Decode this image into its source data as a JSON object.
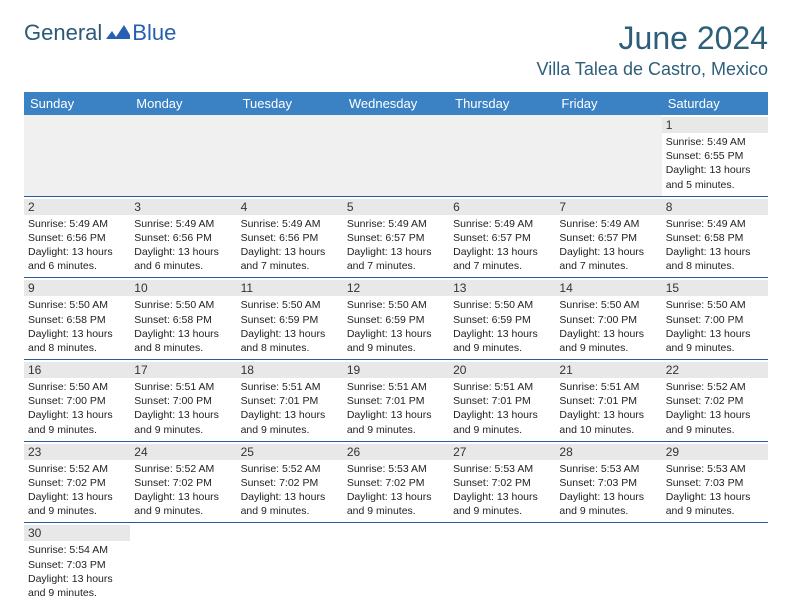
{
  "logo": {
    "general": "General",
    "blue": "Blue"
  },
  "title": "June 2024",
  "location": "Villa Talea de Castro, Mexico",
  "colors": {
    "header_bg": "#3b82c4",
    "header_text": "#ffffff",
    "title_color": "#2e5f7a",
    "border": "#2b5a9a",
    "daynum_bg": "#e8e8e8",
    "empty_bg": "#f0f0f0"
  },
  "day_names": [
    "Sunday",
    "Monday",
    "Tuesday",
    "Wednesday",
    "Thursday",
    "Friday",
    "Saturday"
  ],
  "weeks": [
    [
      null,
      null,
      null,
      null,
      null,
      null,
      {
        "n": "1",
        "sr": "Sunrise: 5:49 AM",
        "ss": "Sunset: 6:55 PM",
        "dl": "Daylight: 13 hours and 5 minutes."
      }
    ],
    [
      {
        "n": "2",
        "sr": "Sunrise: 5:49 AM",
        "ss": "Sunset: 6:56 PM",
        "dl": "Daylight: 13 hours and 6 minutes."
      },
      {
        "n": "3",
        "sr": "Sunrise: 5:49 AM",
        "ss": "Sunset: 6:56 PM",
        "dl": "Daylight: 13 hours and 6 minutes."
      },
      {
        "n": "4",
        "sr": "Sunrise: 5:49 AM",
        "ss": "Sunset: 6:56 PM",
        "dl": "Daylight: 13 hours and 7 minutes."
      },
      {
        "n": "5",
        "sr": "Sunrise: 5:49 AM",
        "ss": "Sunset: 6:57 PM",
        "dl": "Daylight: 13 hours and 7 minutes."
      },
      {
        "n": "6",
        "sr": "Sunrise: 5:49 AM",
        "ss": "Sunset: 6:57 PM",
        "dl": "Daylight: 13 hours and 7 minutes."
      },
      {
        "n": "7",
        "sr": "Sunrise: 5:49 AM",
        "ss": "Sunset: 6:57 PM",
        "dl": "Daylight: 13 hours and 7 minutes."
      },
      {
        "n": "8",
        "sr": "Sunrise: 5:49 AM",
        "ss": "Sunset: 6:58 PM",
        "dl": "Daylight: 13 hours and 8 minutes."
      }
    ],
    [
      {
        "n": "9",
        "sr": "Sunrise: 5:50 AM",
        "ss": "Sunset: 6:58 PM",
        "dl": "Daylight: 13 hours and 8 minutes."
      },
      {
        "n": "10",
        "sr": "Sunrise: 5:50 AM",
        "ss": "Sunset: 6:58 PM",
        "dl": "Daylight: 13 hours and 8 minutes."
      },
      {
        "n": "11",
        "sr": "Sunrise: 5:50 AM",
        "ss": "Sunset: 6:59 PM",
        "dl": "Daylight: 13 hours and 8 minutes."
      },
      {
        "n": "12",
        "sr": "Sunrise: 5:50 AM",
        "ss": "Sunset: 6:59 PM",
        "dl": "Daylight: 13 hours and 9 minutes."
      },
      {
        "n": "13",
        "sr": "Sunrise: 5:50 AM",
        "ss": "Sunset: 6:59 PM",
        "dl": "Daylight: 13 hours and 9 minutes."
      },
      {
        "n": "14",
        "sr": "Sunrise: 5:50 AM",
        "ss": "Sunset: 7:00 PM",
        "dl": "Daylight: 13 hours and 9 minutes."
      },
      {
        "n": "15",
        "sr": "Sunrise: 5:50 AM",
        "ss": "Sunset: 7:00 PM",
        "dl": "Daylight: 13 hours and 9 minutes."
      }
    ],
    [
      {
        "n": "16",
        "sr": "Sunrise: 5:50 AM",
        "ss": "Sunset: 7:00 PM",
        "dl": "Daylight: 13 hours and 9 minutes."
      },
      {
        "n": "17",
        "sr": "Sunrise: 5:51 AM",
        "ss": "Sunset: 7:00 PM",
        "dl": "Daylight: 13 hours and 9 minutes."
      },
      {
        "n": "18",
        "sr": "Sunrise: 5:51 AM",
        "ss": "Sunset: 7:01 PM",
        "dl": "Daylight: 13 hours and 9 minutes."
      },
      {
        "n": "19",
        "sr": "Sunrise: 5:51 AM",
        "ss": "Sunset: 7:01 PM",
        "dl": "Daylight: 13 hours and 9 minutes."
      },
      {
        "n": "20",
        "sr": "Sunrise: 5:51 AM",
        "ss": "Sunset: 7:01 PM",
        "dl": "Daylight: 13 hours and 9 minutes."
      },
      {
        "n": "21",
        "sr": "Sunrise: 5:51 AM",
        "ss": "Sunset: 7:01 PM",
        "dl": "Daylight: 13 hours and 10 minutes."
      },
      {
        "n": "22",
        "sr": "Sunrise: 5:52 AM",
        "ss": "Sunset: 7:02 PM",
        "dl": "Daylight: 13 hours and 9 minutes."
      }
    ],
    [
      {
        "n": "23",
        "sr": "Sunrise: 5:52 AM",
        "ss": "Sunset: 7:02 PM",
        "dl": "Daylight: 13 hours and 9 minutes."
      },
      {
        "n": "24",
        "sr": "Sunrise: 5:52 AM",
        "ss": "Sunset: 7:02 PM",
        "dl": "Daylight: 13 hours and 9 minutes."
      },
      {
        "n": "25",
        "sr": "Sunrise: 5:52 AM",
        "ss": "Sunset: 7:02 PM",
        "dl": "Daylight: 13 hours and 9 minutes."
      },
      {
        "n": "26",
        "sr": "Sunrise: 5:53 AM",
        "ss": "Sunset: 7:02 PM",
        "dl": "Daylight: 13 hours and 9 minutes."
      },
      {
        "n": "27",
        "sr": "Sunrise: 5:53 AM",
        "ss": "Sunset: 7:02 PM",
        "dl": "Daylight: 13 hours and 9 minutes."
      },
      {
        "n": "28",
        "sr": "Sunrise: 5:53 AM",
        "ss": "Sunset: 7:03 PM",
        "dl": "Daylight: 13 hours and 9 minutes."
      },
      {
        "n": "29",
        "sr": "Sunrise: 5:53 AM",
        "ss": "Sunset: 7:03 PM",
        "dl": "Daylight: 13 hours and 9 minutes."
      }
    ],
    [
      {
        "n": "30",
        "sr": "Sunrise: 5:54 AM",
        "ss": "Sunset: 7:03 PM",
        "dl": "Daylight: 13 hours and 9 minutes."
      },
      null,
      null,
      null,
      null,
      null,
      null
    ]
  ]
}
